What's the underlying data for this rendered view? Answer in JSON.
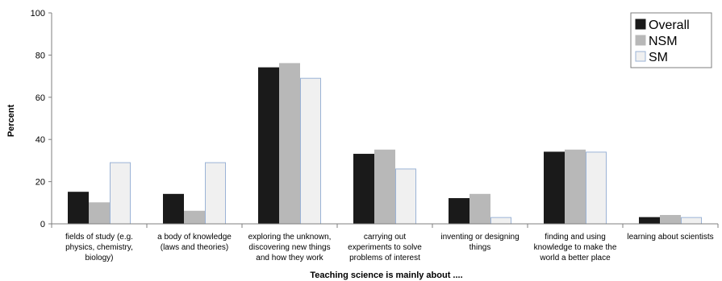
{
  "chart_data": {
    "type": "bar",
    "title": "",
    "xlabel": "Teaching science is mainly about ....",
    "ylabel": "Percent",
    "ylim": [
      0,
      100
    ],
    "yticks": [
      0,
      20,
      40,
      60,
      80,
      100
    ],
    "grid": false,
    "legend_position": "top-right",
    "categories": [
      [
        "fields of study (e.g.",
        "physics, chemistry,",
        "biology)"
      ],
      [
        "a body of knowledge",
        "(laws and theories)"
      ],
      [
        "exploring the unknown,",
        "discovering new things",
        "and how they work"
      ],
      [
        "carrying out",
        "experiments to solve",
        "problems of interest"
      ],
      [
        "inventing or designing",
        "things"
      ],
      [
        "finding and using",
        "knowledge to make the",
        "world a better place"
      ],
      [
        "learning about scientists"
      ]
    ],
    "series": [
      {
        "name": "Overall",
        "values": [
          15,
          14,
          74,
          33,
          12,
          34,
          3
        ],
        "fill": "#1a1a1a",
        "stroke": "#1a1a1a"
      },
      {
        "name": "NSM",
        "values": [
          10,
          6,
          76,
          35,
          14,
          35,
          4
        ],
        "fill": "#b8b8b8",
        "stroke": "#b8b8b8"
      },
      {
        "name": "SM",
        "values": [
          29,
          29,
          69,
          26,
          3,
          34,
          3
        ],
        "fill": "#f0f0f0",
        "stroke": "#9bb3d6"
      }
    ]
  }
}
